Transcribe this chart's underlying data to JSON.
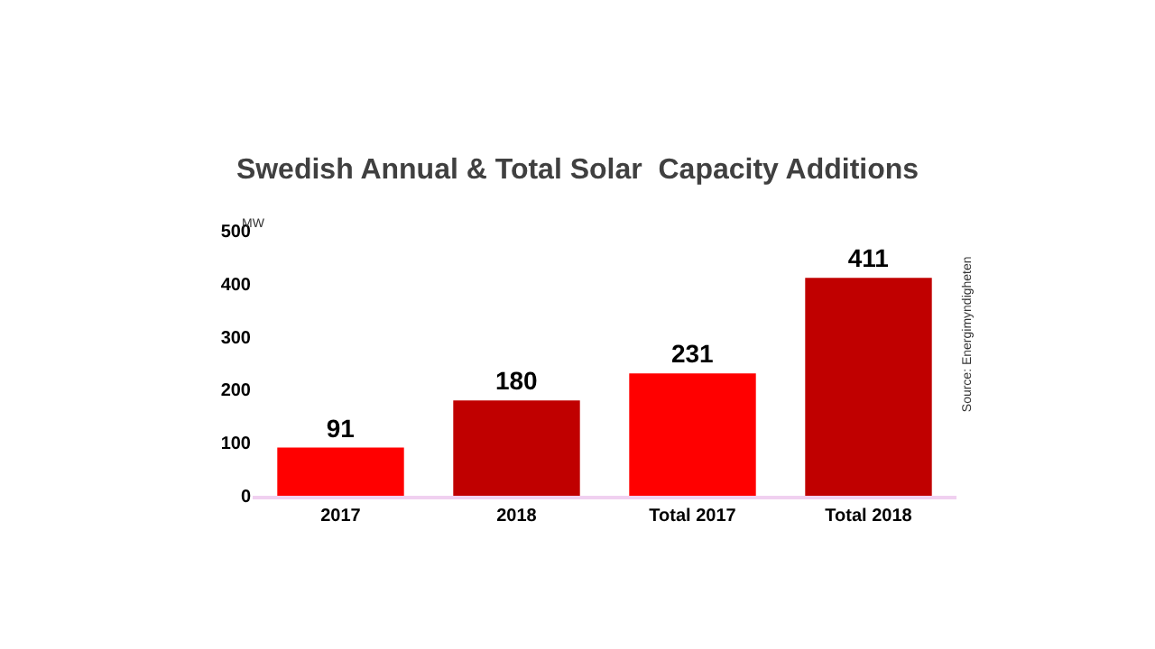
{
  "chart_data": {
    "type": "bar",
    "title": "Swedish Annual & Total Solar  Capacity Additions",
    "ylabel": "MW",
    "categories": [
      "2017",
      "2018",
      "Total 2017",
      "Total 2018"
    ],
    "values": [
      91,
      180,
      231,
      411
    ],
    "colors": [
      "#ff0000",
      "#c00000",
      "#ff0000",
      "#c00000"
    ],
    "ylim": [
      0,
      500
    ],
    "yticks": [
      0,
      100,
      200,
      300,
      400,
      500
    ],
    "grid": false,
    "data_labels": true,
    "annotations": [
      "Source: Energimyndigheten"
    ]
  }
}
